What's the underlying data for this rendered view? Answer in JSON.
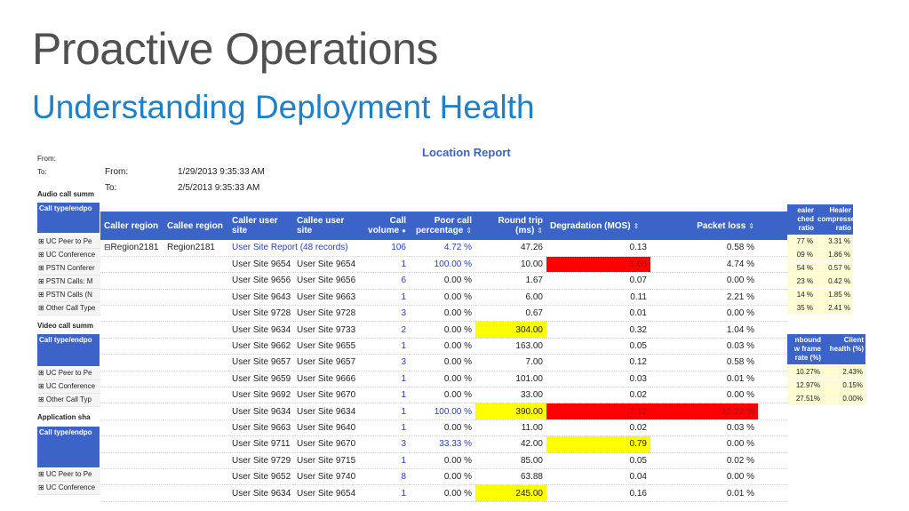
{
  "slide": {
    "title": "Proactive Operations",
    "subtitle": "Understanding Deployment Health"
  },
  "background_report": {
    "from_label": "From:",
    "to_label": "To:",
    "audio_section": "Audio call summ",
    "header": "Call type/endpo",
    "audio_rows": [
      "⊞ UC Peer to Pe",
      "⊞ UC Conference",
      "⊞ PSTN Conferer",
      "⊞ PSTN Calls: M",
      "⊞ PSTN Calls (N",
      "⊞ Other Call Type"
    ],
    "video_section": "Video call summ",
    "video_rows": [
      "⊞ UC Peer to Pe",
      "⊞ UC Conference",
      "⊞ Other Call Typ"
    ],
    "app_section": "Application sha",
    "app_rows": [
      "⊞ UC Peer to Pe",
      "⊞ UC Conference"
    ],
    "right_top": {
      "headers": [
        "ealer\nched\nratio",
        "Healer\ncompressed\nratio"
      ],
      "rows": [
        [
          "77 %",
          "3.31 %"
        ],
        [
          "09 %",
          "1.86 %"
        ],
        [
          "54 %",
          "0.57 %"
        ],
        [
          "23 %",
          "0.42 %"
        ],
        [
          "14 %",
          "1.85 %"
        ],
        [
          "35 %",
          "2.41 %"
        ]
      ]
    },
    "right_bottom": {
      "headers": [
        "nbound\nw frame\nrate (%)",
        "Client\nhealth (%)"
      ],
      "rows": [
        [
          "10.27%",
          "2.43%"
        ],
        [
          "12.97%",
          "0.15%"
        ],
        [
          "27.51%",
          "0.00%"
        ]
      ]
    }
  },
  "report": {
    "title": "Location Report",
    "from_label": "From:",
    "from_value": "1/29/2013 9:35:33 AM",
    "to_label": "To:",
    "to_value": "2/5/2013 9:35:33 AM",
    "columns": {
      "caller_region": "Caller region",
      "callee_region": "Callee region",
      "caller_site": "Caller user site",
      "callee_site": "Callee user site",
      "call_volume": "Call volume",
      "poor_pct": "Poor call percentage",
      "round_trip": "Round trip (ms)",
      "degradation": "Degradation (MOS)",
      "packet_loss": "Packet loss"
    },
    "group": {
      "caller_region": "Region2181",
      "callee_region": "Region2181",
      "label": "User Site Report (48 records)",
      "call_volume": "106",
      "poor_pct": "4.72 %",
      "round_trip": "47.26",
      "degradation": "0.13",
      "packet_loss": "0.58 %"
    },
    "rows": [
      {
        "caller": "User Site 9654",
        "callee": "User Site 9654",
        "vol": "1",
        "poor": "100.00 %",
        "rtt": "10.00",
        "deg": "1.66",
        "loss": "4.74 %",
        "rtt_hl": "",
        "deg_hl": "red",
        "loss_hl": ""
      },
      {
        "caller": "User Site 9656",
        "callee": "User Site 9656",
        "vol": "6",
        "poor": "0.00 %",
        "rtt": "1.67",
        "deg": "0.07",
        "loss": "0.00 %",
        "rtt_hl": "",
        "deg_hl": "",
        "loss_hl": ""
      },
      {
        "caller": "User Site 9643",
        "callee": "User Site 9663",
        "vol": "1",
        "poor": "0.00 %",
        "rtt": "6.00",
        "deg": "0.11",
        "loss": "2.21 %",
        "rtt_hl": "",
        "deg_hl": "",
        "loss_hl": ""
      },
      {
        "caller": "User Site 9728",
        "callee": "User Site 9728",
        "vol": "3",
        "poor": "0.00 %",
        "rtt": "0.67",
        "deg": "0.01",
        "loss": "0.00 %",
        "rtt_hl": "",
        "deg_hl": "",
        "loss_hl": ""
      },
      {
        "caller": "User Site 9634",
        "callee": "User Site 9733",
        "vol": "2",
        "poor": "0.00 %",
        "rtt": "304.00",
        "deg": "0.32",
        "loss": "1.04 %",
        "rtt_hl": "yel",
        "deg_hl": "",
        "loss_hl": ""
      },
      {
        "caller": "User Site 9662",
        "callee": "User Site 9655",
        "vol": "1",
        "poor": "0.00 %",
        "rtt": "163.00",
        "deg": "0.05",
        "loss": "0.03 %",
        "rtt_hl": "",
        "deg_hl": "",
        "loss_hl": ""
      },
      {
        "caller": "User Site 9657",
        "callee": "User Site 9657",
        "vol": "3",
        "poor": "0.00 %",
        "rtt": "7.00",
        "deg": "0.12",
        "loss": "0.58 %",
        "rtt_hl": "",
        "deg_hl": "",
        "loss_hl": ""
      },
      {
        "caller": "User Site 9659",
        "callee": "User Site 9666",
        "vol": "1",
        "poor": "0.00 %",
        "rtt": "101.00",
        "deg": "0.03",
        "loss": "0.01 %",
        "rtt_hl": "",
        "deg_hl": "",
        "loss_hl": ""
      },
      {
        "caller": "User Site 9692",
        "callee": "User Site 9670",
        "vol": "1",
        "poor": "0.00 %",
        "rtt": "33.00",
        "deg": "0.02",
        "loss": "0.00 %",
        "rtt_hl": "",
        "deg_hl": "",
        "loss_hl": ""
      },
      {
        "caller": "User Site 9634",
        "callee": "User Site 9634",
        "vol": "1",
        "poor": "100.00 %",
        "rtt": "390.00",
        "deg": "1.12",
        "loss": "12.22 %",
        "rtt_hl": "yel",
        "deg_hl": "red",
        "loss_hl": "red"
      },
      {
        "caller": "User Site 9663",
        "callee": "User Site 9640",
        "vol": "1",
        "poor": "0.00 %",
        "rtt": "11.00",
        "deg": "0.02",
        "loss": "0.03 %",
        "rtt_hl": "",
        "deg_hl": "",
        "loss_hl": ""
      },
      {
        "caller": "User Site 9711",
        "callee": "User Site 9670",
        "vol": "3",
        "poor": "33.33 %",
        "rtt": "42.00",
        "deg": "0.79",
        "loss": "0.00 %",
        "rtt_hl": "",
        "deg_hl": "yel",
        "loss_hl": ""
      },
      {
        "caller": "User Site 9729",
        "callee": "User Site 9715",
        "vol": "1",
        "poor": "0.00 %",
        "rtt": "85.00",
        "deg": "0.05",
        "loss": "0.02 %",
        "rtt_hl": "",
        "deg_hl": "",
        "loss_hl": ""
      },
      {
        "caller": "User Site 9652",
        "callee": "User Site 9740",
        "vol": "8",
        "poor": "0.00 %",
        "rtt": "63.88",
        "deg": "0.04",
        "loss": "0.00 %",
        "rtt_hl": "",
        "deg_hl": "",
        "loss_hl": ""
      },
      {
        "caller": "User Site 9634",
        "callee": "User Site 9654",
        "vol": "1",
        "poor": "0.00 %",
        "rtt": "245.00",
        "deg": "0.16",
        "loss": "0.01 %",
        "rtt_hl": "yel",
        "deg_hl": "",
        "loss_hl": ""
      }
    ],
    "colors": {
      "header": "#3c64c8",
      "warning": "#ffff00",
      "critical": "#ff0000",
      "link": "#2a3fb5"
    }
  }
}
